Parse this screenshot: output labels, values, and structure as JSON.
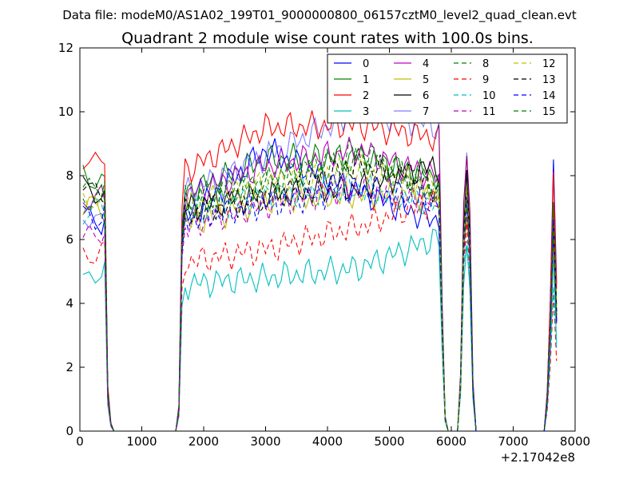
{
  "suptitle": "Data file: modeM0/AS1A02_199T01_9000000800_06157cztM0_level2_quad_clean.evt",
  "chart_data": {
    "type": "line",
    "title": "Quadrant 2 module wise count rates with 100.0s bins.",
    "xlabel": "",
    "ylabel": "",
    "xlim": [
      0,
      8000
    ],
    "ylim": [
      0,
      12
    ],
    "x_offset_label": "+2.17042e8",
    "x_ticks": [
      0,
      1000,
      2000,
      3000,
      4000,
      5000,
      6000,
      7000,
      8000
    ],
    "y_ticks": [
      0,
      2,
      4,
      6,
      8,
      10,
      12
    ],
    "grid": false,
    "legend_position": "top-right",
    "legend_columns": 4,
    "x": [
      50,
      150,
      250,
      350,
      400,
      450,
      500,
      550,
      650,
      750,
      850,
      950,
      1050,
      1150,
      1250,
      1350,
      1450,
      1550,
      1600,
      1650,
      1700,
      1750,
      1800,
      1850,
      1900,
      1950,
      2000,
      2050,
      2100,
      2150,
      2200,
      2250,
      2300,
      2350,
      2400,
      2450,
      2500,
      2550,
      2600,
      2650,
      2700,
      2750,
      2800,
      2850,
      2900,
      2950,
      3000,
      3050,
      3100,
      3150,
      3200,
      3250,
      3300,
      3350,
      3400,
      3450,
      3500,
      3550,
      3600,
      3650,
      3700,
      3750,
      3800,
      3850,
      3900,
      3950,
      4000,
      4050,
      4100,
      4150,
      4200,
      4250,
      4300,
      4350,
      4400,
      4450,
      4500,
      4550,
      4600,
      4650,
      4700,
      4750,
      4800,
      4850,
      4900,
      4950,
      5000,
      5050,
      5100,
      5150,
      5200,
      5250,
      5300,
      5350,
      5400,
      5450,
      5500,
      5550,
      5600,
      5650,
      5700,
      5750,
      5800,
      5850,
      5900,
      5950,
      6000,
      6050,
      6100,
      6150,
      6200,
      6250,
      6300,
      6350,
      6400,
      6450,
      6550,
      6650,
      6750,
      6850,
      6950,
      7050,
      7150,
      7250,
      7350,
      7400,
      7450,
      7500,
      7550,
      7600,
      7650,
      7700
    ],
    "shape": [
      1,
      1,
      1,
      1,
      1,
      0.17,
      0.03,
      0,
      0,
      0,
      0,
      0,
      0,
      0,
      0,
      0,
      0,
      0,
      0.1,
      0.85,
      1,
      1,
      1,
      1,
      1,
      1,
      1,
      1,
      1,
      1,
      1,
      1,
      1,
      1,
      1,
      1,
      1,
      1,
      1,
      1,
      1,
      1,
      1,
      1,
      1,
      1,
      1,
      1,
      1,
      1,
      1,
      1,
      1,
      1,
      1,
      1,
      1,
      1,
      1,
      1,
      1,
      1,
      1,
      1,
      1,
      1,
      1,
      1,
      1,
      1,
      1,
      1,
      1,
      1,
      1,
      1,
      1,
      1,
      1,
      1,
      1,
      1,
      1,
      1,
      1,
      1,
      1,
      1,
      1,
      1,
      1,
      1,
      1,
      1,
      1,
      1,
      1,
      1,
      1,
      1,
      1,
      1,
      1,
      0.45,
      0.05,
      0,
      0,
      0,
      0,
      0.2,
      0.8,
      1,
      0.78,
      0.18,
      0,
      0,
      0,
      0,
      0,
      0,
      0,
      0,
      0,
      0,
      0,
      0,
      0,
      0,
      0.15,
      0.5,
      1,
      0.55,
      0.45
    ],
    "series": [
      {
        "name": "0",
        "color": "#0000ff",
        "dash": "solid",
        "levels": [
          6.6,
          6.7,
          8.8,
          7.5,
          6.6,
          8.4
        ]
      },
      {
        "name": "1",
        "color": "#008000",
        "dash": "solid",
        "levels": [
          8.0,
          7.5,
          8.5,
          8.6,
          8.0,
          7.2
        ]
      },
      {
        "name": "2",
        "color": "#ff0000",
        "dash": "solid",
        "levels": [
          8.6,
          8.2,
          9.5,
          9.6,
          9.2,
          8.1
        ]
      },
      {
        "name": "3",
        "color": "#00bfbf",
        "dash": "solid",
        "levels": [
          4.9,
          4.6,
          4.8,
          5.1,
          6.0,
          5.0
        ]
      },
      {
        "name": "4",
        "color": "#bf00bf",
        "dash": "solid",
        "levels": [
          7.2,
          7.4,
          8.3,
          8.8,
          8.0,
          6.6
        ]
      },
      {
        "name": "5",
        "color": "#bfbf00",
        "dash": "solid",
        "levels": [
          7.0,
          6.5,
          7.2,
          7.4,
          7.3,
          6.1
        ]
      },
      {
        "name": "6",
        "color": "#000000",
        "dash": "solid",
        "levels": [
          7.5,
          7.0,
          7.4,
          7.6,
          8.3,
          6.3
        ]
      },
      {
        "name": "7",
        "color": "#0000ff",
        "dash": "solid",
        "opacity": 0.5,
        "levels": [
          6.6,
          7.5,
          8.6,
          10.0,
          9.6,
          6.4
        ]
      },
      {
        "name": "8",
        "color": "#008000",
        "dash": "dashed",
        "levels": [
          7.8,
          7.3,
          7.8,
          8.4,
          7.8,
          6.8
        ]
      },
      {
        "name": "9",
        "color": "#ff0000",
        "dash": "dashed",
        "levels": [
          5.6,
          5.3,
          5.7,
          6.4,
          7.2,
          4.0
        ]
      },
      {
        "name": "10",
        "color": "#00bfbf",
        "dash": "dashed",
        "levels": [
          6.9,
          6.8,
          7.4,
          7.6,
          7.1,
          4.7
        ]
      },
      {
        "name": "11",
        "color": "#bf00bf",
        "dash": "dashed",
        "levels": [
          6.0,
          6.4,
          7.1,
          7.6,
          7.2,
          6.0
        ]
      },
      {
        "name": "12",
        "color": "#bfbf00",
        "dash": "dashed",
        "levels": [
          7.1,
          7.0,
          7.8,
          8.2,
          7.6,
          6.9
        ]
      },
      {
        "name": "13",
        "color": "#000000",
        "dash": "dashed",
        "levels": [
          7.7,
          6.8,
          7.3,
          8.4,
          7.6,
          6.8
        ]
      },
      {
        "name": "14",
        "color": "#0000ff",
        "dash": "dashed",
        "levels": [
          6.8,
          6.6,
          7.1,
          7.6,
          7.2,
          6.2
        ]
      },
      {
        "name": "15",
        "color": "#008000",
        "dash": "dashed",
        "levels": [
          7.4,
          7.0,
          7.8,
          8.8,
          7.5,
          6.5
        ]
      }
    ]
  }
}
